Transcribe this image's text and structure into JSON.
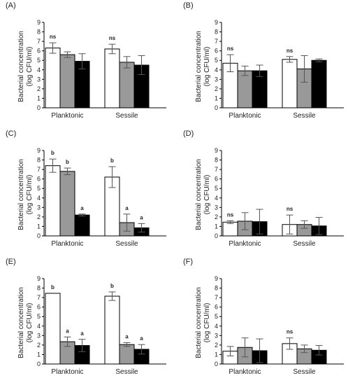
{
  "figure": {
    "y_label_line1": "Bacterial concentration",
    "y_label_line2": "(log CFU/ml)"
  },
  "colors": {
    "series": [
      "#ffffff",
      "#999999",
      "#000000"
    ],
    "axis": "#000000"
  },
  "chart_data": [
    {
      "panel": "(A)",
      "type": "bar",
      "categories": [
        "Planktonic",
        "Sessile"
      ],
      "ylim": [
        0,
        9
      ],
      "yticks": [
        "0",
        "1",
        "2",
        "3",
        "4",
        "5",
        "6",
        "7",
        "8",
        "9"
      ],
      "series": [
        {
          "values": [
            6.3,
            6.2
          ],
          "err": [
            0.55,
            0.5
          ]
        },
        {
          "values": [
            5.6,
            4.8
          ],
          "err": [
            0.3,
            0.6
          ]
        },
        {
          "values": [
            4.9,
            4.5
          ],
          "err": [
            0.8,
            1.0
          ]
        }
      ],
      "annotations": [
        {
          "category": 0,
          "series": 0,
          "text": "ns"
        },
        {
          "category": 1,
          "series": 0,
          "text": "ns"
        }
      ]
    },
    {
      "panel": "(B)",
      "type": "bar",
      "categories": [
        "Planktonic",
        "Sessile"
      ],
      "ylim": [
        0,
        9
      ],
      "yticks": [
        "0",
        "1",
        "2",
        "3",
        "4",
        "5",
        "6",
        "7",
        "8",
        "9"
      ],
      "series": [
        {
          "values": [
            4.7,
            5.1
          ],
          "err": [
            0.9,
            0.3
          ]
        },
        {
          "values": [
            3.9,
            4.1
          ],
          "err": [
            0.5,
            1.4
          ]
        },
        {
          "values": [
            3.9,
            5.0
          ],
          "err": [
            0.6,
            0.15
          ]
        }
      ],
      "annotations": [
        {
          "category": 0,
          "series": 0,
          "text": "ns"
        },
        {
          "category": 1,
          "series": 0,
          "text": "ns"
        }
      ]
    },
    {
      "panel": "(C)",
      "type": "bar",
      "categories": [
        "Planktonic",
        "Sessile"
      ],
      "ylim": [
        0,
        9
      ],
      "yticks": [
        "0",
        "1",
        "2",
        "3",
        "4",
        "5",
        "6",
        "7",
        "8",
        "9"
      ],
      "series": [
        {
          "values": [
            7.4,
            6.2
          ],
          "err": [
            0.7,
            1.1
          ]
        },
        {
          "values": [
            6.8,
            1.4
          ],
          "err": [
            0.35,
            0.9
          ]
        },
        {
          "values": [
            2.2,
            0.85
          ],
          "err": [
            0.1,
            0.45
          ]
        }
      ],
      "annotations": [
        {
          "category": 0,
          "series": 0,
          "text": "b"
        },
        {
          "category": 0,
          "series": 1,
          "text": "b"
        },
        {
          "category": 0,
          "series": 2,
          "text": "a"
        },
        {
          "category": 1,
          "series": 0,
          "text": "b"
        },
        {
          "category": 1,
          "series": 1,
          "text": "a"
        },
        {
          "category": 1,
          "series": 2,
          "text": "a"
        }
      ]
    },
    {
      "panel": "(D)",
      "type": "bar",
      "categories": [
        "Planktonic",
        "Sessile"
      ],
      "ylim": [
        0,
        9
      ],
      "yticks": [
        "0",
        "1",
        "2",
        "3",
        "4",
        "5",
        "6",
        "7",
        "8",
        "9"
      ],
      "series": [
        {
          "values": [
            1.45,
            1.2
          ],
          "err": [
            0.15,
            1.0
          ]
        },
        {
          "values": [
            1.55,
            1.2
          ],
          "err": [
            0.9,
            0.4
          ]
        },
        {
          "values": [
            1.5,
            1.05
          ],
          "err": [
            1.3,
            0.9
          ]
        }
      ],
      "annotations": [
        {
          "category": 0,
          "series": 0,
          "text": "ns"
        },
        {
          "category": 1,
          "series": 0,
          "text": "ns"
        }
      ]
    },
    {
      "panel": "(E)",
      "type": "bar",
      "categories": [
        "Planktonic",
        "Sessile"
      ],
      "ylim": [
        0,
        9
      ],
      "yticks": [
        "0",
        "1",
        "2",
        "3",
        "4",
        "5",
        "6",
        "7",
        "8",
        "9"
      ],
      "series": [
        {
          "values": [
            7.45,
            7.15
          ],
          "err": [
            0,
            0.45
          ]
        },
        {
          "values": [
            2.35,
            2.05
          ],
          "err": [
            0.5,
            0.2
          ]
        },
        {
          "values": [
            1.95,
            1.55
          ],
          "err": [
            0.65,
            0.5
          ]
        }
      ],
      "annotations": [
        {
          "category": 0,
          "series": 0,
          "text": "b"
        },
        {
          "category": 0,
          "series": 1,
          "text": "a"
        },
        {
          "category": 0,
          "series": 2,
          "text": "a"
        },
        {
          "category": 1,
          "series": 0,
          "text": "b"
        },
        {
          "category": 1,
          "series": 1,
          "text": "a"
        },
        {
          "category": 1,
          "series": 2,
          "text": "a"
        }
      ]
    },
    {
      "panel": "(F)",
      "type": "bar",
      "categories": [
        "Planktonic",
        "Sessile"
      ],
      "ylim": [
        0,
        9
      ],
      "yticks": [
        "0",
        "1",
        "2",
        "3",
        "4",
        "5",
        "6",
        "7",
        "8",
        "9"
      ],
      "series": [
        {
          "values": [
            1.35,
            2.15
          ],
          "err": [
            0.5,
            0.6
          ]
        },
        {
          "values": [
            1.75,
            1.6
          ],
          "err": [
            1.0,
            0.4
          ]
        },
        {
          "values": [
            1.4,
            1.45
          ],
          "err": [
            1.25,
            0.5
          ]
        }
      ],
      "annotations": [
        {
          "category": 1,
          "series": 0,
          "text": "ns"
        }
      ]
    }
  ]
}
